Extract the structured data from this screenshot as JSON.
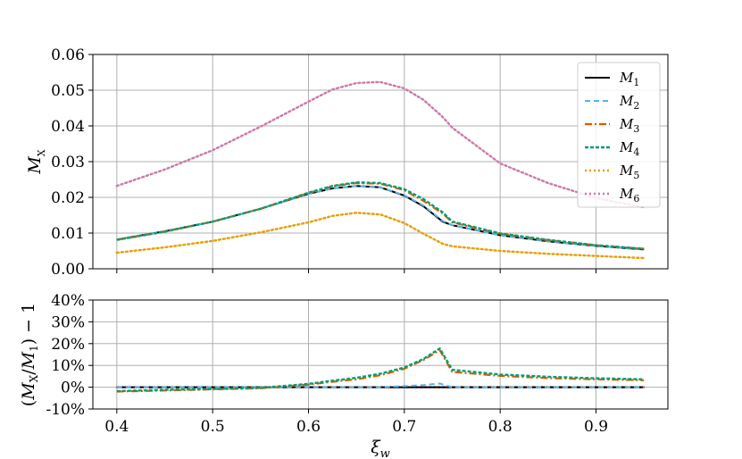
{
  "chart_data": [
    {
      "type": "line",
      "xlabel_main": "ξ",
      "xlabel_sub": "w",
      "ylabel_main": "M",
      "ylabel_sub": "X",
      "xlim": [
        0.375,
        0.975
      ],
      "ylim": [
        0,
        0.06
      ],
      "xticks": [
        0.4,
        0.5,
        0.6,
        0.7,
        0.8,
        0.9
      ],
      "xtick_labels": [
        "0.4",
        "0.5",
        "0.6",
        "0.7",
        "0.8",
        "0.9"
      ],
      "yticks": [
        0,
        0.01,
        0.02,
        0.03,
        0.04,
        0.05,
        0.06
      ],
      "ytick_labels": [
        "0.00",
        "0.01",
        "0.02",
        "0.03",
        "0.04",
        "0.05",
        "0.06"
      ],
      "grid": true,
      "legend_placement": "top-right",
      "x": [
        0.4,
        0.45,
        0.5,
        0.55,
        0.6,
        0.625,
        0.65,
        0.675,
        0.7,
        0.72,
        0.74,
        0.75,
        0.8,
        0.85,
        0.9,
        0.95
      ],
      "series": [
        {
          "name_main": "M",
          "name_sub": "1",
          "color": "#000000",
          "dash": "solid",
          "values": [
            0.0082,
            0.0105,
            0.0132,
            0.0168,
            0.021,
            0.0225,
            0.0232,
            0.0228,
            0.0205,
            0.0175,
            0.0132,
            0.0122,
            0.0094,
            0.0077,
            0.0064,
            0.0054
          ]
        },
        {
          "name_main": "M",
          "name_sub": "2",
          "color": "#56b4e9",
          "dash": "dashed",
          "values": [
            0.0082,
            0.0105,
            0.0132,
            0.0168,
            0.021,
            0.0225,
            0.0232,
            0.0228,
            0.0206,
            0.0177,
            0.0134,
            0.0122,
            0.0094,
            0.0077,
            0.0064,
            0.0054
          ]
        },
        {
          "name_main": "M",
          "name_sub": "3",
          "color": "#d55e00",
          "dash": "dashdot",
          "values": [
            0.0081,
            0.0104,
            0.0132,
            0.0168,
            0.0212,
            0.0231,
            0.024,
            0.0238,
            0.022,
            0.019,
            0.0155,
            0.013,
            0.0098,
            0.008,
            0.0066,
            0.0056
          ]
        },
        {
          "name_main": "M",
          "name_sub": "4",
          "color": "#009e73",
          "dash": "dense",
          "values": [
            0.0081,
            0.0104,
            0.0132,
            0.0168,
            0.0213,
            0.0232,
            0.0242,
            0.024,
            0.0223,
            0.0195,
            0.0158,
            0.0132,
            0.0099,
            0.0081,
            0.0066,
            0.0056
          ]
        },
        {
          "name_main": "M",
          "name_sub": "5",
          "color": "#e69f00",
          "dash": "dotted",
          "values": [
            0.0045,
            0.006,
            0.0078,
            0.0102,
            0.013,
            0.0148,
            0.0157,
            0.0152,
            0.0128,
            0.0098,
            0.007,
            0.0063,
            0.005,
            0.0042,
            0.0036,
            0.003
          ]
        },
        {
          "name_main": "M",
          "name_sub": "6",
          "color": "#cc79a7",
          "dash": "dotted",
          "values": [
            0.0232,
            0.0278,
            0.0332,
            0.0398,
            0.0468,
            0.0502,
            0.052,
            0.0523,
            0.0505,
            0.0473,
            0.0425,
            0.0395,
            0.0295,
            0.024,
            0.0198,
            0.0172
          ]
        }
      ]
    },
    {
      "type": "line",
      "xlabel_main": "ξ",
      "xlabel_sub": "w",
      "ylabel_text": "(M_X/M_1) − 1",
      "ylabel_parts": {
        "open": "(",
        "m1": "M",
        "s1": "X",
        "slash": "/",
        "m2": "M",
        "s2": "1",
        "close": ") − 1"
      },
      "xlim": [
        0.375,
        0.975
      ],
      "ylim": [
        -10,
        40
      ],
      "xticks": [
        0.4,
        0.5,
        0.6,
        0.7,
        0.8,
        0.9
      ],
      "xtick_labels": [
        "0.4",
        "0.5",
        "0.6",
        "0.7",
        "0.8",
        "0.9"
      ],
      "yticks": [
        -10,
        0,
        10,
        20,
        30,
        40
      ],
      "ytick_labels": [
        "-10%",
        "0%",
        "10%",
        "20%",
        "30%",
        "40%"
      ],
      "grid": true,
      "x": [
        0.4,
        0.45,
        0.5,
        0.55,
        0.6,
        0.625,
        0.65,
        0.675,
        0.7,
        0.72,
        0.737,
        0.75,
        0.8,
        0.85,
        0.9,
        0.95
      ],
      "series": [
        {
          "name": "M1",
          "color": "#000000",
          "dash": "solid",
          "values": [
            0,
            0,
            0,
            0,
            0,
            0,
            0,
            0,
            0,
            0,
            0,
            0,
            0,
            0,
            0,
            0
          ]
        },
        {
          "name": "M2",
          "color": "#56b4e9",
          "dash": "dashed",
          "values": [
            0,
            0,
            0,
            0,
            0,
            0,
            0,
            0,
            0.5,
            1.0,
            1.7,
            0,
            0,
            0,
            0,
            0
          ]
        },
        {
          "name": "M3",
          "color": "#d55e00",
          "dash": "dashdot",
          "values": [
            -2,
            -1.5,
            -1,
            -0.5,
            1.2,
            2.5,
            3.6,
            5.5,
            8.5,
            12.5,
            17,
            7,
            5.2,
            4.2,
            3.6,
            3.2
          ]
        },
        {
          "name": "M4",
          "color": "#009e73",
          "dash": "dense",
          "values": [
            -1.8,
            -1.2,
            -0.8,
            -0.3,
            1.5,
            3,
            4.3,
            6.2,
            9,
            13,
            17.8,
            8,
            5.8,
            4.8,
            4.1,
            3.6
          ]
        },
        {
          "name": "M5",
          "color": "#e69f00",
          "dash": "dotted",
          "values": [
            0,
            0,
            0,
            0,
            0,
            0,
            0,
            0,
            0,
            0,
            0,
            0,
            0,
            0,
            0,
            0
          ]
        },
        {
          "name": "M6",
          "color": "#cc79a7",
          "dash": "dotted",
          "values": [
            0,
            0,
            0,
            0,
            0,
            0,
            0,
            0,
            0,
            0,
            0,
            0,
            0,
            0,
            0,
            0
          ]
        }
      ]
    }
  ]
}
